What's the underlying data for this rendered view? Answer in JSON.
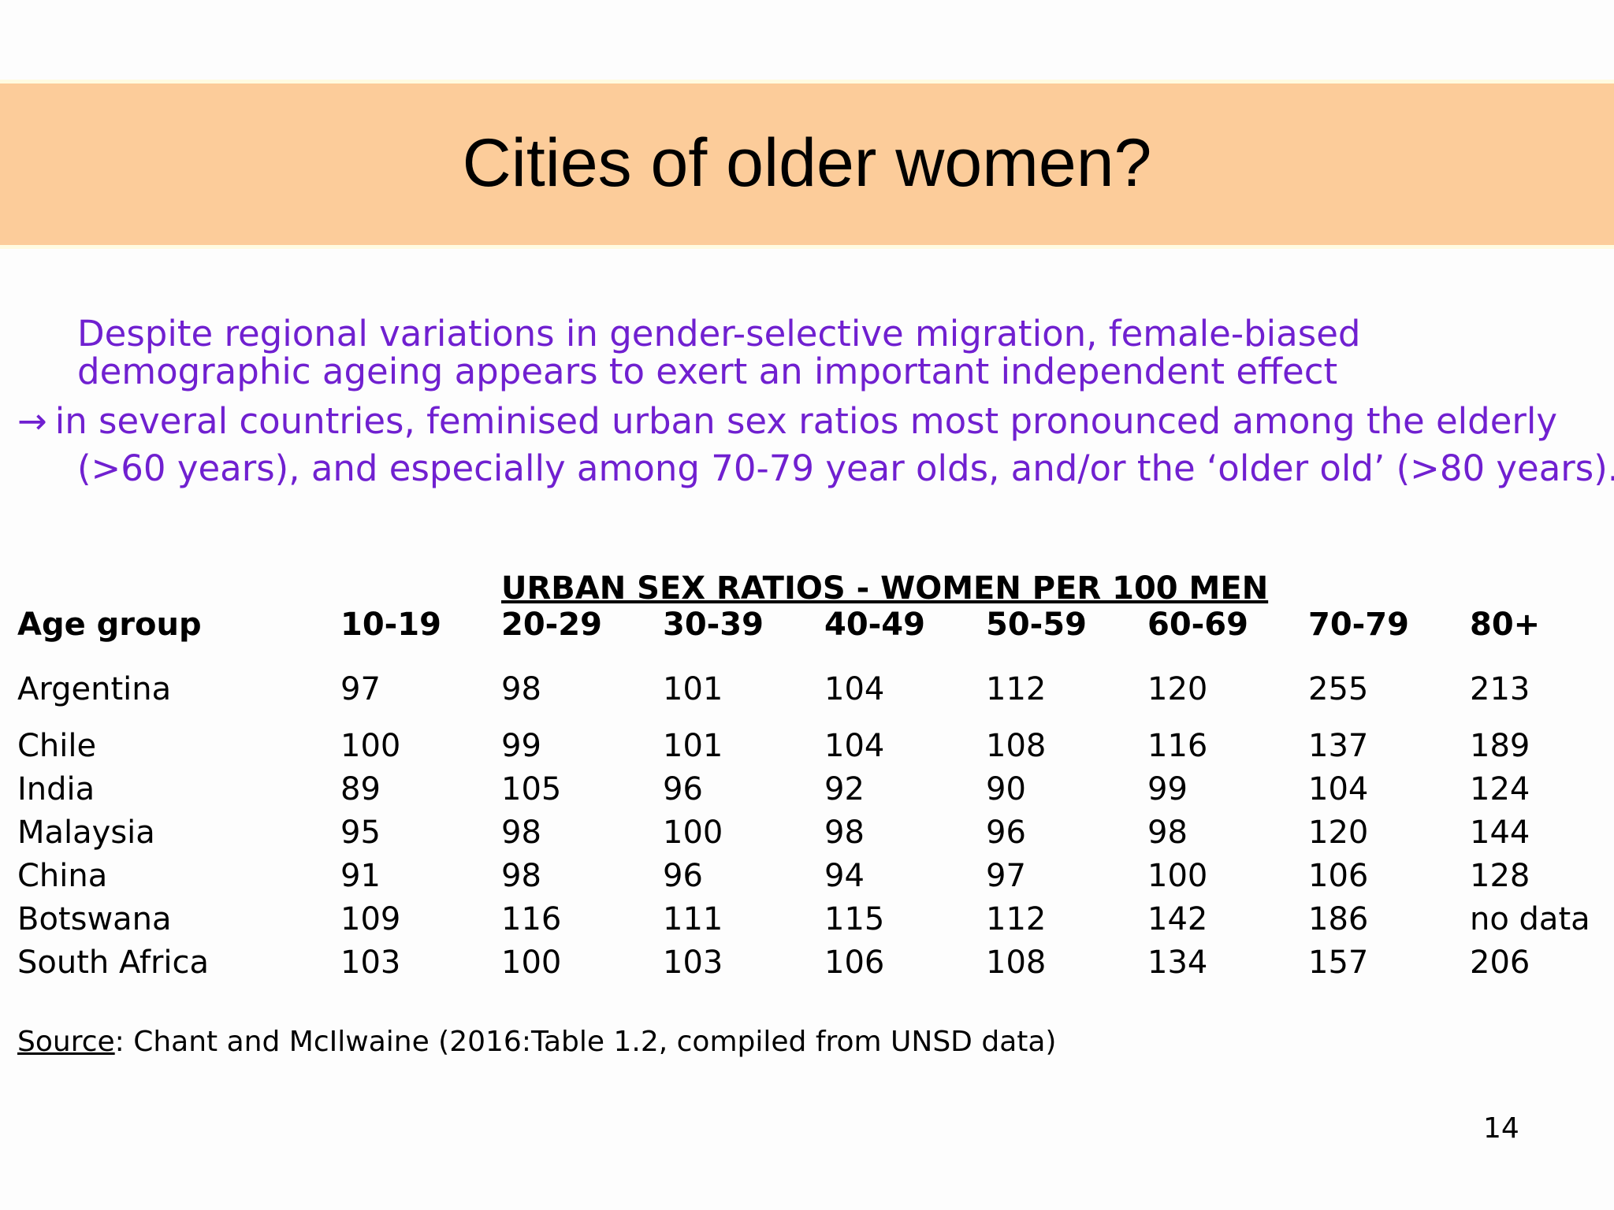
{
  "slide": {
    "title": "Cities of older women?",
    "intro_line1": "Despite regional variations in gender-selective migration, female-biased",
    "intro_line2": "demographic ageing appears to exert an important independent effect",
    "arrow_glyph": "→",
    "bullet_line1": "in several countries, feminised urban sex ratios most pronounced among the elderly",
    "bullet_line2": "(>60 years), and especially among 70-79 year olds, and/or the ‘older old’ (>80 years).",
    "table_heading": "URBAN SEX RATIOS -  WOMEN PER 100 MEN",
    "source_label": "Source",
    "source_text": ": Chant and McIlwaine (2016:Table 1.2, compiled from UNSD data)",
    "page_number": "14",
    "colors": {
      "title_band": "#fccc9a",
      "intro_text": "#7020d0"
    }
  },
  "table": {
    "header": [
      "Age group",
      "10-19",
      "20-29",
      "30-39",
      "40-49",
      "50-59",
      "60-69",
      "70-79",
      "80+"
    ],
    "rows": [
      [
        "Argentina",
        "97",
        "98",
        "101",
        "104",
        "112",
        "120",
        "255",
        "213"
      ],
      [
        "Chile",
        "100",
        "99",
        "101",
        "104",
        "108",
        "116",
        "137",
        "189"
      ],
      [
        "India",
        "89",
        "105",
        "96",
        "92",
        "90",
        "99",
        "104",
        "124"
      ],
      [
        "Malaysia",
        "95",
        "98",
        "100",
        "98",
        "96",
        "98",
        "120",
        "144"
      ],
      [
        "China",
        "91",
        "98",
        "96",
        "94",
        "97",
        "100",
        "106",
        "128"
      ],
      [
        "Botswana",
        "109",
        "116",
        "111",
        "115",
        "112",
        "142",
        "186",
        "no data"
      ],
      [
        "South Africa",
        "103",
        "100",
        "103",
        "106",
        "108",
        "134",
        "157",
        "206"
      ]
    ]
  }
}
